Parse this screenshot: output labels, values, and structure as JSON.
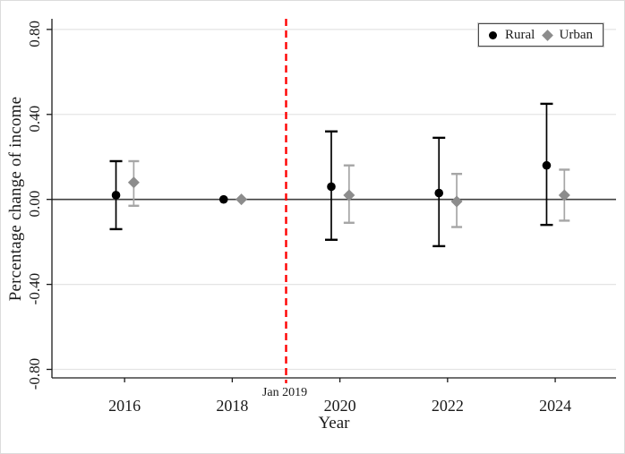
{
  "figure": {
    "background": "#ffffff",
    "border_color": "#dcdcdc"
  },
  "chart_data": {
    "type": "scatter",
    "subtype": "coefficient-plot-with-error-bars",
    "title": "",
    "xlabel": "Year",
    "ylabel": "Percentage change of income",
    "xlim": [
      2014.65,
      2025.13
    ],
    "ylim": [
      -0.84,
      0.85
    ],
    "grid": true,
    "zero_line": true,
    "x_ticks": [
      {
        "value": 2016,
        "label": "2016"
      },
      {
        "value": 2018,
        "label": "2018"
      },
      {
        "value": 2020,
        "label": "2020"
      },
      {
        "value": 2022,
        "label": "2022"
      },
      {
        "value": 2024,
        "label": "2024"
      }
    ],
    "y_ticks": [
      {
        "value": 0.8,
        "label": "0.80"
      },
      {
        "value": 0.4,
        "label": "0.40"
      },
      {
        "value": 0.0,
        "label": "0.00"
      },
      {
        "value": -0.4,
        "label": "-0.40"
      },
      {
        "value": -0.8,
        "label": "-0.80"
      }
    ],
    "vline": {
      "x": 2019,
      "label": "Jan 2019",
      "color": "#ff0000",
      "style": "dashed"
    },
    "colors": {
      "grid": "#e4e4e4",
      "zero_line": "#404040",
      "axis": "#1a1a1a",
      "text": "#1a1a1a"
    },
    "legend": {
      "position": "top-right",
      "entries": [
        "Rural",
        "Urban"
      ]
    },
    "series": [
      {
        "name": "Rural",
        "marker": "circle",
        "color": "#000000",
        "ci_color": "#000000",
        "x_offset_years": -0.16,
        "points": [
          {
            "x": 2016,
            "est": 0.02,
            "lo": -0.14,
            "hi": 0.18
          },
          {
            "x": 2018,
            "est": 0.0,
            "lo": 0.0,
            "hi": 0.0
          },
          {
            "x": 2020,
            "est": 0.06,
            "lo": -0.19,
            "hi": 0.32
          },
          {
            "x": 2022,
            "est": 0.03,
            "lo": -0.22,
            "hi": 0.29
          },
          {
            "x": 2024,
            "est": 0.16,
            "lo": -0.12,
            "hi": 0.45
          }
        ]
      },
      {
        "name": "Urban",
        "marker": "diamond",
        "color": "#8c8c8c",
        "ci_color": "#a6a6a6",
        "x_offset_years": 0.17,
        "points": [
          {
            "x": 2016,
            "est": 0.08,
            "lo": -0.03,
            "hi": 0.18
          },
          {
            "x": 2018,
            "est": 0.0,
            "lo": 0.0,
            "hi": 0.0
          },
          {
            "x": 2020,
            "est": 0.02,
            "lo": -0.11,
            "hi": 0.16
          },
          {
            "x": 2022,
            "est": -0.01,
            "lo": -0.13,
            "hi": 0.12
          },
          {
            "x": 2024,
            "est": 0.02,
            "lo": -0.1,
            "hi": 0.14
          }
        ]
      }
    ]
  }
}
